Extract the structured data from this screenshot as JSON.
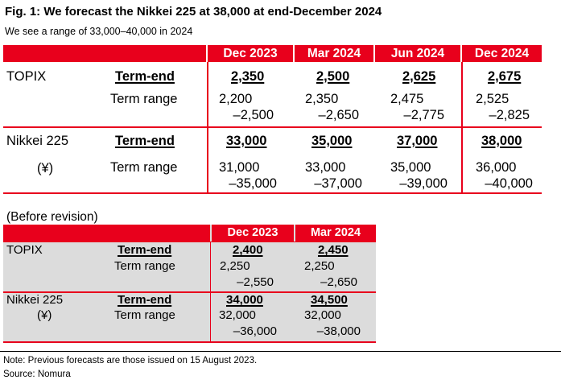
{
  "title": "Fig. 1: We forecast the Nikkei 225 at 38,000 at end-December 2024",
  "subtitle": "We see a range of 33,000–40,000 in 2024",
  "main_table": {
    "columns": [
      "Dec 2023",
      "Mar 2024",
      "Jun 2024",
      "Dec 2024"
    ],
    "topix": {
      "label": "TOPIX",
      "term_end_label": "Term-end",
      "term_range_label": "Term range",
      "term_end": [
        "2,350",
        "2,500",
        "2,625",
        "2,675"
      ],
      "range_low": [
        "2,200",
        "2,350",
        "2,475",
        "2,525"
      ],
      "range_high": [
        "–2,500",
        "–2,650",
        "–2,775",
        "–2,825"
      ]
    },
    "nikkei": {
      "label": "Nikkei 225",
      "currency": "(¥)",
      "term_end_label": "Term-end",
      "term_range_label": "Term range",
      "term_end": [
        "33,000",
        "35,000",
        "37,000",
        "38,000"
      ],
      "range_low": [
        "31,000",
        "33,000",
        "35,000",
        "36,000"
      ],
      "range_high": [
        "–35,000",
        "–37,000",
        "–39,000",
        "–40,000"
      ]
    }
  },
  "before_revision": {
    "label": "(Before revision)",
    "columns": [
      "Dec 2023",
      "Mar 2024"
    ],
    "topix": {
      "label": "TOPIX",
      "term_end_label": "Term-end",
      "term_range_label": "Term range",
      "term_end": [
        "2,400",
        "2,450"
      ],
      "range_low": [
        "2,250",
        "2,250"
      ],
      "range_high": [
        "–2,550",
        "–2,650"
      ]
    },
    "nikkei": {
      "label": "Nikkei 225",
      "currency": "(¥)",
      "term_end_label": "Term-end",
      "term_range_label": "Term range",
      "term_end": [
        "34,000",
        "34,500"
      ],
      "range_low": [
        "32,000",
        "32,000"
      ],
      "range_high": [
        "–36,000",
        "–38,000"
      ]
    }
  },
  "note": "Note: Previous forecasts are those issued on 15 August 2023.",
  "source": "Source: Nomura",
  "colors": {
    "accent": "#e8001c",
    "shade": "#dcdcdc"
  }
}
